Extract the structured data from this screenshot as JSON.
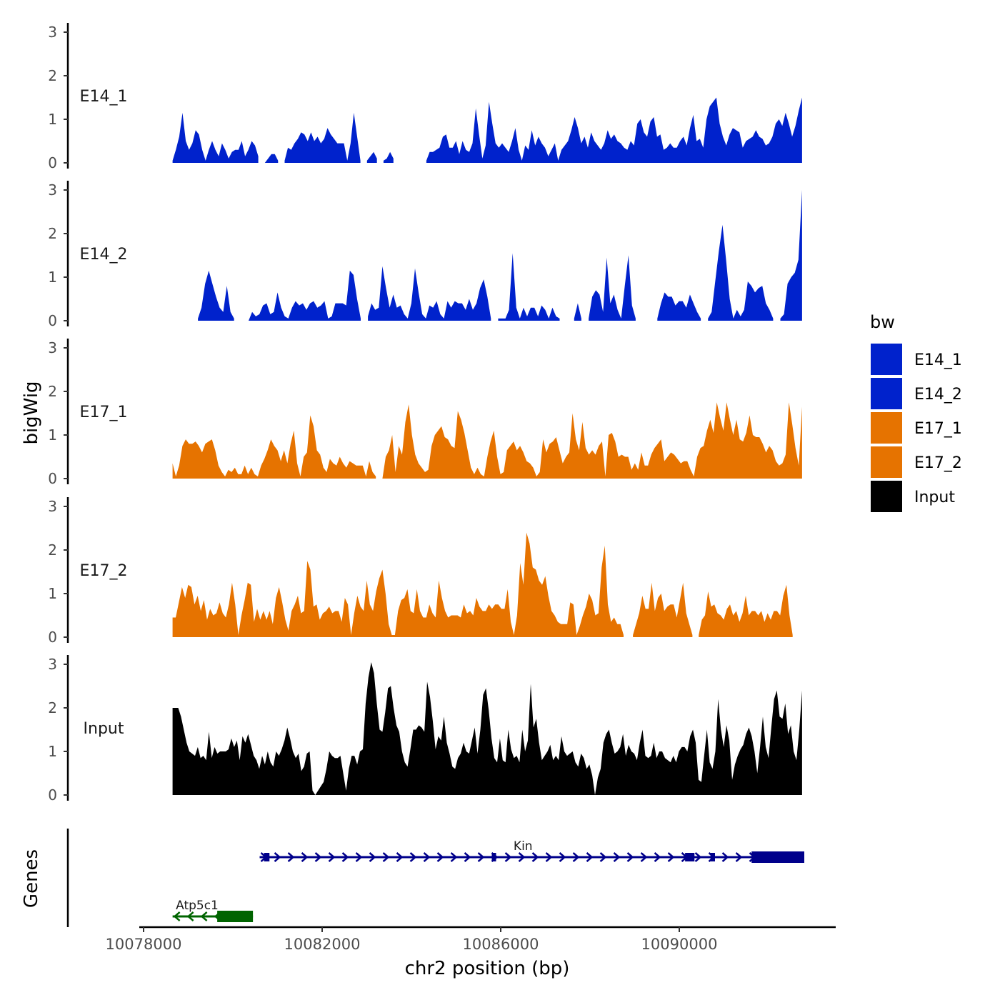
{
  "chart_data": {
    "type": "area",
    "title": "",
    "ylabel": "bigWig",
    "xlabel": "chr2 position (bp)",
    "genes_label": "Genes",
    "ylim": [
      0,
      3
    ],
    "y_ticks": [
      "0",
      "1",
      "2",
      "3"
    ],
    "xlim": [
      10077900,
      10093850
    ],
    "x_ticks": [
      {
        "value": 10078000,
        "label": "10078000"
      },
      {
        "value": 10082000,
        "label": "10082000"
      },
      {
        "value": 10086000,
        "label": "10086000"
      },
      {
        "value": 10090000,
        "label": "10090000"
      }
    ],
    "x_start": 10078650,
    "x_end": 10092750,
    "legend": {
      "title": "bw",
      "position": "right",
      "entries": [
        {
          "name": "E14_1",
          "color": "#0022cc"
        },
        {
          "name": "E14_2",
          "color": "#0022cc"
        },
        {
          "name": "E17_1",
          "color": "#e67300"
        },
        {
          "name": "E17_2",
          "color": "#e67300"
        },
        {
          "name": "Input",
          "color": "#000000"
        }
      ]
    },
    "series": [
      {
        "name": "E14_1",
        "color": "#0022cc",
        "values": [
          0.05,
          0.3,
          0.6,
          1.15,
          0.5,
          0.3,
          0.45,
          0.75,
          0.65,
          0.3,
          0.05,
          0.3,
          0.5,
          0.3,
          0.15,
          0.45,
          0.3,
          0.1,
          0.25,
          0.3,
          0.3,
          0.5,
          0.15,
          0.3,
          0.5,
          0.4,
          0.15,
          null,
          0.0,
          0.1,
          0.2,
          0.2,
          0.05,
          null,
          0.05,
          0.35,
          0.3,
          0.45,
          0.55,
          0.7,
          0.65,
          0.5,
          0.7,
          0.5,
          0.6,
          0.45,
          0.55,
          0.8,
          0.65,
          0.55,
          0.45,
          0.45,
          0.45,
          0.05,
          0.45,
          1.15,
          0.6,
          0.05,
          null,
          0.05,
          0.15,
          0.25,
          0.1,
          null,
          0.05,
          0.1,
          0.25,
          0.1,
          null,
          null,
          null,
          null,
          null,
          null,
          null,
          null,
          null,
          0.05,
          0.25,
          0.25,
          0.3,
          0.35,
          0.6,
          0.65,
          0.35,
          0.35,
          0.5,
          0.2,
          0.5,
          0.3,
          0.25,
          0.45,
          1.25,
          0.65,
          0.1,
          0.4,
          1.4,
          0.9,
          0.45,
          0.35,
          0.45,
          0.35,
          0.25,
          0.5,
          0.8,
          0.3,
          0.05,
          0.4,
          0.3,
          0.75,
          0.4,
          0.6,
          0.45,
          0.35,
          0.15,
          0.3,
          0.45,
          0.05,
          0.3,
          0.4,
          0.5,
          0.75,
          1.05,
          0.8,
          0.45,
          0.6,
          0.35,
          0.7,
          0.5,
          0.4,
          0.3,
          0.45,
          0.75,
          0.55,
          0.65,
          0.5,
          0.45,
          0.35,
          0.3,
          0.5,
          0.4,
          0.9,
          1.0,
          0.7,
          0.6,
          0.95,
          1.05,
          0.6,
          0.65,
          0.3,
          0.35,
          0.45,
          0.35,
          0.35,
          0.5,
          0.6,
          0.4,
          0.8,
          1.1,
          0.5,
          0.55,
          0.35,
          1.0,
          1.3,
          1.4,
          1.5,
          0.9,
          0.6,
          0.4,
          0.65,
          0.8,
          0.75,
          0.7,
          0.35,
          0.5,
          0.55,
          0.6,
          0.75,
          0.6,
          0.55,
          0.4,
          0.45,
          0.6,
          0.9,
          1.0,
          0.85,
          1.15,
          0.9,
          0.6,
          0.85,
          1.2,
          1.5
        ]
      },
      {
        "name": "E14_2",
        "color": "#0022cc",
        "values": [
          null,
          null,
          null,
          null,
          null,
          null,
          null,
          0.05,
          0.3,
          0.85,
          1.15,
          0.85,
          0.55,
          0.3,
          0.2,
          0.8,
          0.2,
          0.05,
          null,
          null,
          null,
          0.0,
          0.2,
          0.1,
          0.15,
          0.35,
          0.4,
          0.15,
          0.2,
          0.65,
          0.3,
          0.1,
          0.05,
          0.3,
          0.45,
          0.35,
          0.4,
          0.25,
          0.4,
          0.45,
          0.3,
          0.35,
          0.45,
          0.05,
          0.1,
          0.4,
          0.4,
          0.4,
          0.35,
          1.15,
          1.05,
          0.5,
          0.05,
          null,
          0.1,
          0.4,
          0.25,
          0.3,
          1.25,
          0.75,
          0.3,
          0.6,
          0.3,
          0.35,
          0.15,
          0.05,
          0.4,
          1.2,
          0.65,
          0.15,
          0.05,
          0.35,
          0.3,
          0.45,
          0.15,
          0.05,
          0.45,
          0.3,
          0.45,
          0.4,
          0.4,
          0.25,
          0.5,
          0.25,
          0.4,
          0.75,
          0.95,
          0.55,
          0.05,
          null,
          0.05,
          0.05,
          0.05,
          0.25,
          1.55,
          0.3,
          0.05,
          0.3,
          0.1,
          0.3,
          0.3,
          0.1,
          0.35,
          0.25,
          0.05,
          0.3,
          0.1,
          0.05,
          null,
          null,
          null,
          0.05,
          0.4,
          0.05,
          null,
          0.05,
          0.55,
          0.7,
          0.6,
          0.2,
          1.45,
          0.4,
          0.6,
          0.25,
          0.05,
          0.8,
          1.5,
          0.35,
          0.05,
          null,
          null,
          null,
          null,
          null,
          0.05,
          0.4,
          0.65,
          0.55,
          0.55,
          0.35,
          0.45,
          0.45,
          0.3,
          0.6,
          0.4,
          0.2,
          0.05,
          null,
          0.05,
          0.2,
          0.9,
          1.6,
          2.2,
          1.4,
          0.5,
          0.05,
          0.25,
          0.1,
          0.25,
          0.9,
          0.8,
          0.65,
          0.75,
          0.8,
          0.4,
          0.25,
          0.05,
          null,
          0.05,
          0.15,
          0.85,
          1.0,
          1.1,
          1.4,
          3.0
        ]
      },
      {
        "name": "E17_1",
        "color": "#e67300",
        "values": [
          0.35,
          0.05,
          0.3,
          0.75,
          0.9,
          0.8,
          0.8,
          0.85,
          0.75,
          0.6,
          0.8,
          0.85,
          0.9,
          0.65,
          0.3,
          0.15,
          0.05,
          0.2,
          0.15,
          0.25,
          0.1,
          0.1,
          0.3,
          0.1,
          0.25,
          0.1,
          0.05,
          0.3,
          0.45,
          0.65,
          0.9,
          0.75,
          0.65,
          0.4,
          0.65,
          0.35,
          0.8,
          1.1,
          0.35,
          0.05,
          0.5,
          0.6,
          1.45,
          1.2,
          0.65,
          0.55,
          0.25,
          0.15,
          0.45,
          0.35,
          0.3,
          0.5,
          0.35,
          0.25,
          0.4,
          0.35,
          0.3,
          0.3,
          0.3,
          0.05,
          0.4,
          0.15,
          0.05,
          null,
          0.0,
          0.5,
          0.65,
          1.0,
          0.15,
          0.75,
          0.55,
          1.3,
          1.7,
          1.0,
          0.55,
          0.35,
          0.25,
          0.15,
          0.2,
          0.75,
          1.0,
          1.1,
          1.2,
          0.95,
          0.9,
          0.75,
          0.7,
          1.55,
          1.35,
          1.05,
          0.65,
          0.25,
          0.1,
          0.25,
          0.1,
          0.05,
          0.5,
          0.85,
          1.1,
          0.5,
          0.1,
          0.15,
          0.65,
          0.75,
          0.85,
          0.65,
          0.75,
          0.6,
          0.4,
          0.35,
          0.25,
          0.05,
          0.15,
          0.9,
          0.6,
          0.8,
          0.85,
          0.95,
          0.65,
          0.35,
          0.5,
          0.6,
          1.5,
          0.9,
          0.65,
          1.3,
          0.7,
          0.55,
          0.65,
          0.55,
          0.75,
          0.85,
          0.05,
          1.0,
          1.05,
          0.85,
          0.5,
          0.55,
          0.5,
          0.5,
          0.2,
          0.35,
          0.2,
          0.6,
          0.3,
          0.3,
          0.55,
          0.7,
          0.8,
          0.9,
          0.4,
          0.5,
          0.6,
          0.55,
          0.45,
          0.35,
          0.4,
          0.4,
          0.2,
          0.05,
          0.5,
          0.7,
          0.75,
          1.1,
          1.35,
          1.05,
          1.75,
          1.4,
          1.1,
          1.75,
          1.35,
          1.0,
          1.35,
          0.9,
          0.85,
          1.05,
          1.45,
          1.0,
          0.95,
          0.95,
          0.8,
          0.6,
          0.75,
          0.65,
          0.4,
          0.3,
          0.35,
          0.55,
          1.75,
          1.25,
          0.7,
          0.3,
          1.65
        ]
      },
      {
        "name": "E17_2",
        "color": "#e67300",
        "values": [
          0.45,
          0.45,
          0.8,
          1.15,
          0.9,
          1.2,
          1.15,
          0.75,
          0.95,
          0.6,
          0.85,
          0.4,
          0.65,
          0.5,
          0.55,
          0.8,
          0.55,
          0.45,
          0.75,
          1.25,
          0.75,
          0.05,
          0.5,
          0.85,
          1.25,
          1.2,
          0.35,
          0.65,
          0.4,
          0.6,
          0.4,
          0.6,
          0.3,
          0.9,
          1.15,
          0.8,
          0.4,
          0.15,
          0.6,
          0.75,
          0.95,
          0.55,
          0.6,
          1.75,
          1.55,
          0.7,
          0.75,
          0.4,
          0.55,
          0.6,
          0.7,
          0.55,
          0.6,
          0.6,
          0.35,
          0.9,
          0.75,
          0.05,
          0.55,
          0.95,
          0.7,
          0.6,
          1.3,
          0.75,
          0.6,
          1.05,
          1.35,
          1.55,
          1.0,
          0.3,
          0.05,
          0.05,
          0.6,
          0.85,
          0.9,
          1.1,
          0.6,
          0.55,
          1.1,
          0.6,
          0.45,
          0.45,
          0.75,
          0.55,
          0.45,
          1.3,
          0.9,
          0.6,
          0.45,
          0.5,
          0.5,
          0.5,
          0.45,
          0.75,
          0.55,
          0.6,
          0.5,
          0.9,
          0.7,
          0.6,
          0.6,
          0.75,
          0.65,
          0.75,
          0.75,
          0.65,
          0.65,
          1.1,
          0.35,
          0.05,
          0.5,
          1.7,
          1.2,
          2.4,
          2.15,
          1.6,
          1.55,
          1.3,
          1.2,
          1.4,
          0.95,
          0.6,
          0.5,
          0.35,
          0.3,
          0.3,
          0.3,
          0.8,
          0.75,
          0.05,
          0.25,
          0.5,
          0.7,
          1.0,
          0.85,
          0.5,
          0.55,
          1.6,
          2.1,
          0.75,
          0.35,
          0.45,
          0.3,
          0.3,
          0.05,
          null,
          null,
          0.05,
          0.3,
          0.55,
          0.95,
          0.65,
          0.65,
          1.25,
          0.6,
          0.9,
          1.0,
          0.6,
          0.7,
          0.75,
          0.75,
          0.45,
          0.85,
          1.25,
          0.55,
          0.3,
          0.05,
          null,
          0.05,
          0.4,
          0.5,
          1.05,
          0.7,
          0.75,
          0.55,
          0.5,
          0.4,
          0.65,
          0.75,
          0.5,
          0.6,
          0.35,
          0.55,
          0.95,
          0.5,
          0.6,
          0.6,
          0.5,
          0.6,
          0.35,
          0.55,
          0.4,
          0.6,
          0.6,
          0.5,
          0.95,
          1.2,
          0.5,
          0.05,
          null,
          null,
          0.0
        ]
      },
      {
        "name": "Input",
        "color": "#000000",
        "values": [
          2.0,
          2.0,
          2.0,
          1.8,
          1.5,
          1.2,
          1.0,
          0.95,
          0.9,
          1.1,
          0.85,
          0.9,
          0.8,
          1.45,
          0.85,
          1.1,
          0.95,
          1.0,
          1.0,
          1.0,
          1.05,
          1.3,
          1.1,
          1.25,
          0.8,
          1.35,
          1.2,
          1.4,
          1.15,
          0.9,
          0.8,
          0.6,
          0.9,
          0.7,
          1.0,
          0.75,
          0.65,
          1.0,
          0.9,
          1.05,
          1.25,
          1.55,
          1.3,
          1.0,
          0.85,
          0.95,
          0.55,
          0.65,
          0.95,
          1.0,
          0.1,
          0.0,
          0.1,
          0.2,
          0.3,
          0.6,
          1.0,
          0.9,
          0.85,
          0.85,
          0.9,
          0.5,
          0.1,
          0.6,
          0.9,
          0.9,
          0.7,
          1.0,
          1.05,
          2.1,
          2.7,
          3.05,
          2.8,
          2.1,
          1.5,
          1.45,
          1.9,
          2.45,
          2.5,
          2.0,
          1.6,
          1.45,
          1.0,
          0.75,
          0.65,
          1.05,
          1.5,
          1.5,
          1.6,
          1.55,
          1.45,
          2.6,
          2.25,
          1.7,
          1.05,
          1.35,
          1.25,
          1.8,
          1.2,
          0.95,
          0.65,
          0.6,
          0.85,
          0.95,
          1.2,
          1.0,
          0.95,
          1.25,
          1.55,
          0.95,
          1.5,
          2.3,
          2.45,
          1.95,
          1.3,
          0.85,
          0.75,
          1.3,
          0.8,
          0.75,
          1.5,
          1.05,
          0.85,
          0.9,
          0.75,
          1.5,
          1.0,
          1.25,
          2.55,
          1.55,
          1.75,
          1.2,
          0.8,
          0.9,
          1.0,
          1.15,
          0.8,
          0.9,
          0.8,
          1.35,
          1.0,
          0.9,
          0.95,
          1.0,
          0.75,
          0.65,
          0.95,
          0.85,
          0.6,
          0.7,
          0.45,
          0.0,
          0.4,
          0.6,
          1.2,
          1.4,
          1.5,
          1.2,
          0.95,
          1.0,
          1.1,
          1.4,
          0.9,
          1.15,
          1.0,
          0.95,
          0.8,
          1.2,
          1.5,
          0.9,
          0.85,
          0.9,
          1.2,
          0.85,
          1.0,
          1.0,
          0.85,
          0.8,
          0.75,
          0.9,
          0.75,
          1.0,
          1.1,
          1.1,
          1.0,
          1.35,
          1.5,
          1.2,
          0.35,
          0.3,
          0.9,
          1.5,
          0.75,
          0.6,
          1.0,
          2.2,
          1.5,
          1.1,
          1.6,
          1.25,
          0.35,
          0.7,
          0.9,
          1.05,
          1.15,
          1.4,
          1.55,
          1.35,
          1.0,
          0.5,
          1.1,
          1.8,
          1.1,
          0.85,
          1.55,
          2.2,
          2.4,
          1.8,
          1.75,
          2.1,
          1.4,
          1.6,
          1.0,
          0.8,
          1.5,
          2.4
        ]
      }
    ],
    "genes": [
      {
        "name": "Kin",
        "strand": "+",
        "color": "#00008b",
        "row": 0,
        "start": 10080600,
        "end": 10092800,
        "exons": [
          [
            10080700,
            10080820
          ],
          [
            10085800,
            10085880
          ],
          [
            10090130,
            10090340
          ],
          [
            10090700,
            10090800
          ],
          [
            10091620,
            10092800
          ]
        ]
      },
      {
        "name": "Atp5c1",
        "strand": "-",
        "color": "#006400",
        "row": 1,
        "start": 10078650,
        "end": 10080450,
        "exons": [
          [
            10079650,
            10080450
          ]
        ]
      }
    ]
  }
}
